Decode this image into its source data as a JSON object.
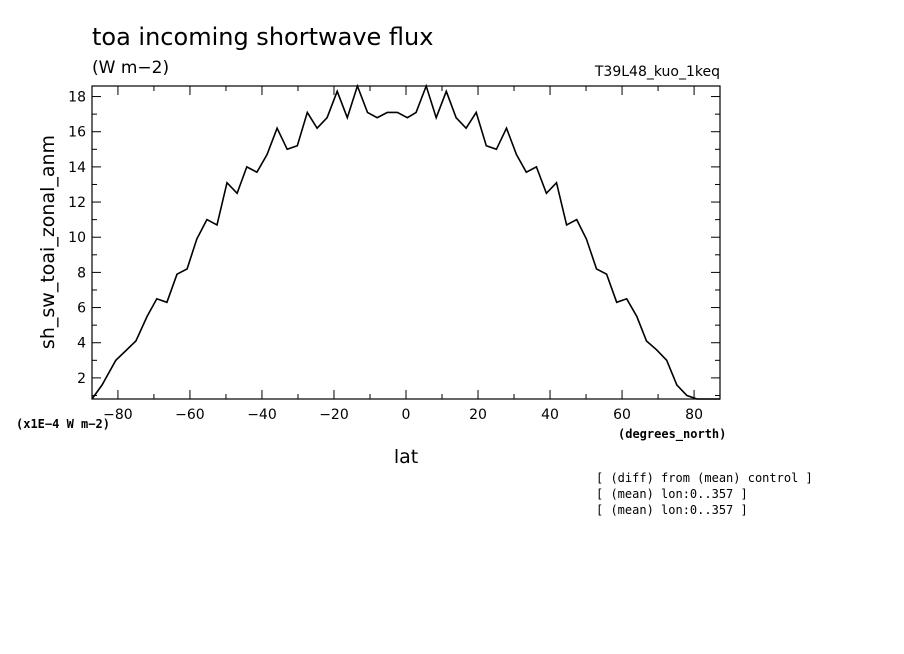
{
  "chart_data": {
    "type": "line",
    "title": "toa incoming shortwave flux",
    "units": "(W m−2)",
    "run_label": "T39L48_kuo_1keq",
    "ylabel": "sh_sw_toai_zonal_anm",
    "y_scale_note": "(x1E−4 W m−2)",
    "xlabel": "lat",
    "x_units": "(degrees_north)",
    "notes": [
      "[ (diff) from (mean) control ]",
      "[ (mean) lon:0..357 ]",
      "[ (mean) lon:0..357 ]"
    ],
    "xlim": [
      -87.2,
      87.2
    ],
    "ylim": [
      0.8,
      18.6
    ],
    "xticks": [
      -80,
      -60,
      -40,
      -20,
      0,
      20,
      40,
      60,
      80
    ],
    "xtick_labels": [
      "−80",
      "−60",
      "−40",
      "−20",
      "0",
      "20",
      "40",
      "60",
      "80"
    ],
    "yticks": [
      2,
      4,
      6,
      8,
      10,
      12,
      14,
      16,
      18
    ],
    "ytick_labels": [
      "2",
      "4",
      "6",
      "8",
      "10",
      "12",
      "14",
      "16",
      "18"
    ],
    "grid": false,
    "series": [
      {
        "x": [
          -87.2,
          -84.4,
          -80.6,
          -75.0,
          -71.9,
          -69.2,
          -66.4,
          -63.6,
          -60.8,
          -58.1,
          -55.3,
          -52.5,
          -49.7,
          -46.9,
          -44.2,
          -41.4,
          -38.6,
          -35.8,
          -33.0,
          -30.2,
          -27.4,
          -24.7,
          -21.9,
          -19.1,
          -16.3,
          -13.5,
          -10.7,
          -8.0,
          -5.2,
          -2.4,
          0.4,
          2.8,
          5.6,
          8.4,
          11.2,
          13.9,
          16.7,
          19.5,
          22.3,
          25.1,
          27.9,
          30.7,
          33.4,
          36.2,
          39.0,
          41.8,
          44.6,
          47.4,
          50.1,
          52.9,
          55.7,
          58.5,
          61.3,
          64.1,
          66.8,
          69.6,
          72.4,
          75.2,
          78.0,
          80.8,
          83.5,
          87.2
        ],
        "y": [
          0.8,
          1.6,
          3.0,
          4.1,
          5.5,
          6.5,
          6.3,
          7.9,
          8.2,
          9.9,
          11.0,
          10.7,
          13.1,
          12.5,
          14.0,
          13.7,
          14.7,
          16.2,
          15.0,
          15.2,
          17.1,
          16.2,
          16.8,
          18.3,
          16.8,
          18.6,
          17.1,
          16.8,
          17.1,
          17.1,
          16.8,
          17.1,
          18.6,
          16.8,
          18.3,
          16.8,
          16.2,
          17.1,
          15.2,
          15.0,
          16.2,
          14.7,
          13.7,
          14.0,
          12.5,
          13.1,
          10.7,
          11.0,
          9.9,
          8.2,
          7.9,
          6.3,
          6.5,
          5.5,
          4.1,
          3.6,
          3.0,
          1.6,
          1.0,
          0.8,
          0.8,
          0.8
        ]
      }
    ]
  }
}
